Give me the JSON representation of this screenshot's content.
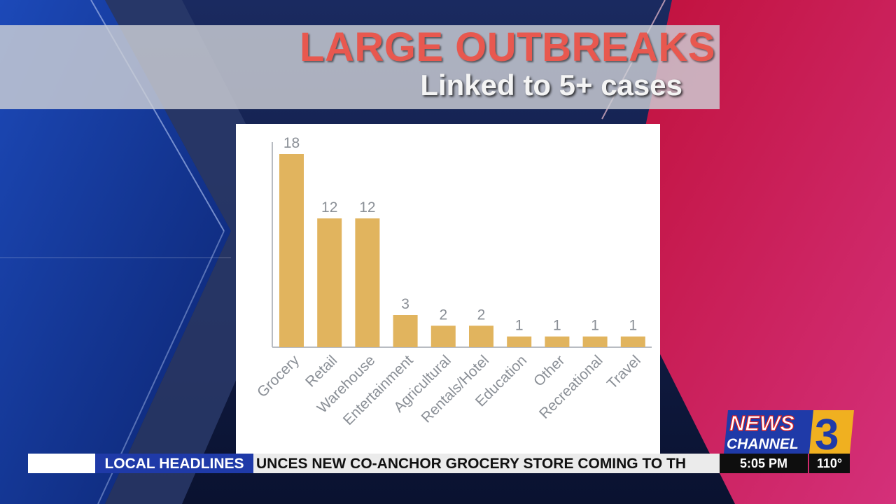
{
  "headline": "LARGE OUTBREAKS",
  "subheadline": "Linked to 5+ cases",
  "chart_data": {
    "type": "bar",
    "categories": [
      "Grocery",
      "Retail",
      "Warehouse",
      "Entertainment",
      "Agricultural",
      "Rentals/Hotel",
      "Education",
      "Other",
      "Recreational",
      "Travel"
    ],
    "values": [
      18,
      12,
      12,
      3,
      2,
      2,
      1,
      1,
      1,
      1
    ],
    "ylim": [
      0,
      18
    ],
    "bar_color": "#e1b45e",
    "label_color": "#8a8f96",
    "grid": false,
    "legend": "none"
  },
  "ticker": {
    "label": "LOCAL HEADLINES",
    "text": "UNCES NEW CO-ANCHOR GROCERY STORE COMING TO TH",
    "time": "5:05 PM",
    "temperature": "110°"
  },
  "logo": {
    "line1": "NEWS",
    "line2": "CHANNEL",
    "number": "3",
    "colors": {
      "red": "#e02020",
      "blue": "#1f3aa8",
      "gold": "#f0b020"
    }
  }
}
